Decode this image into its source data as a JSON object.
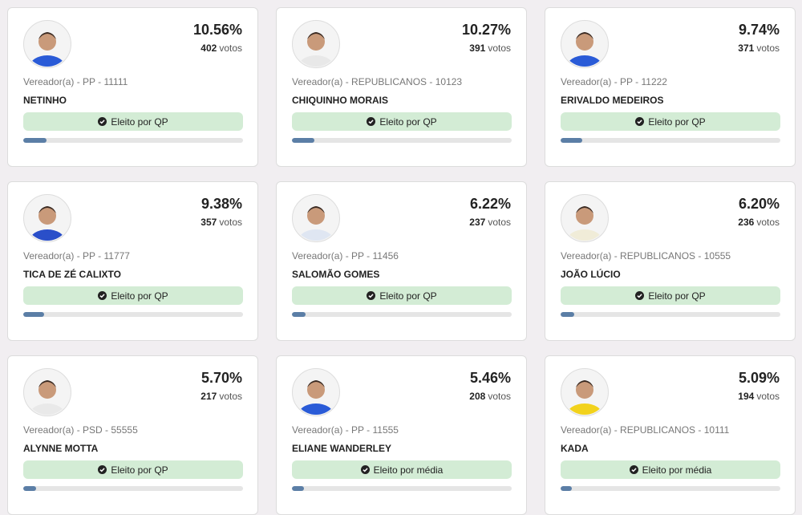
{
  "cards": [
    {
      "percent": {
        "value": 10.56,
        "label": "10.56%"
      },
      "votes": 402,
      "votes_label": "votos",
      "role": "Vereador(a) - PP - 11111",
      "name": "NETINHO",
      "status": "Eleito por QP"
    },
    {
      "percent": {
        "value": 10.27,
        "label": "10.27%"
      },
      "votes": 391,
      "votes_label": "votos",
      "role": "Vereador(a) - REPUBLICANOS - 10123",
      "name": "CHIQUINHO MORAIS",
      "status": "Eleito por QP"
    },
    {
      "percent": {
        "value": 9.74,
        "label": "9.74%"
      },
      "votes": 371,
      "votes_label": "votos",
      "role": "Vereador(a) - PP - 11222",
      "name": "ERIVALDO MEDEIROS",
      "status": "Eleito por QP"
    },
    {
      "percent": {
        "value": 9.38,
        "label": "9.38%"
      },
      "votes": 357,
      "votes_label": "votos",
      "role": "Vereador(a) - PP - 11777",
      "name": "TICA DE ZÉ CALIXTO",
      "status": "Eleito por QP"
    },
    {
      "percent": {
        "value": 6.22,
        "label": "6.22%"
      },
      "votes": 237,
      "votes_label": "votos",
      "role": "Vereador(a) - PP - 11456",
      "name": "SALOMÃO GOMES",
      "status": "Eleito por QP"
    },
    {
      "percent": {
        "value": 6.2,
        "label": "6.20%"
      },
      "votes": 236,
      "votes_label": "votos",
      "role": "Vereador(a) - REPUBLICANOS - 10555",
      "name": "JOÃO LÚCIO",
      "status": "Eleito por QP"
    },
    {
      "percent": {
        "value": 5.7,
        "label": "5.70%"
      },
      "votes": 217,
      "votes_label": "votos",
      "role": "Vereador(a) - PSD - 55555",
      "name": "ALYNNE MOTTA",
      "status": "Eleito por QP"
    },
    {
      "percent": {
        "value": 5.46,
        "label": "5.46%"
      },
      "votes": 208,
      "votes_label": "votos",
      "role": "Vereador(a) - PP - 11555",
      "name": "ELIANE WANDERLEY",
      "status": "Eleito por média"
    },
    {
      "percent": {
        "value": 5.09,
        "label": "5.09%"
      },
      "votes": 194,
      "votes_label": "votos",
      "role": "Vereador(a) - REPUBLICANOS - 10111",
      "name": "KADA",
      "status": "Eleito por média"
    }
  ]
}
